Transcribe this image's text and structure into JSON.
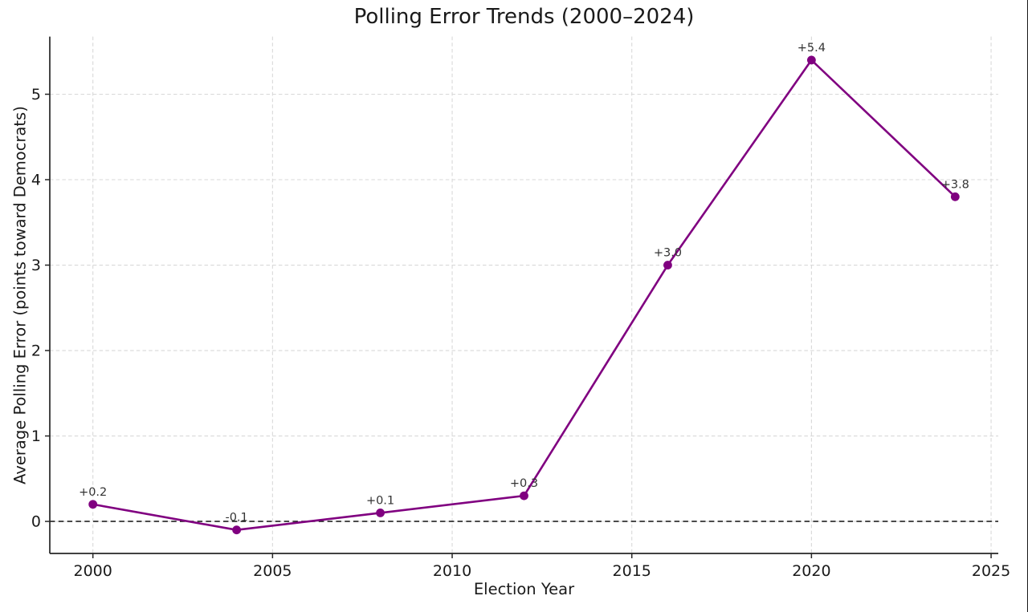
{
  "chart_data": {
    "type": "line",
    "title": "Polling Error Trends (2000–2024)",
    "xlabel": "Election Year",
    "ylabel": "Average Polling Error (points toward Democrats)",
    "x": [
      2000,
      2004,
      2008,
      2012,
      2016,
      2020,
      2024
    ],
    "y": [
      0.2,
      -0.1,
      0.1,
      0.3,
      3.0,
      5.4,
      3.8
    ],
    "point_labels": [
      "+0.2",
      "-0.1",
      "+0.1",
      "+0.3",
      "+3.0",
      "+5.4",
      "+3.8"
    ],
    "xticks": [
      2000,
      2005,
      2010,
      2015,
      2020,
      2025
    ],
    "xtick_labels": [
      "2000",
      "2005",
      "2010",
      "2015",
      "2020",
      "2025"
    ],
    "yticks": [
      0,
      1,
      2,
      3,
      4,
      5
    ],
    "ytick_labels": [
      "0",
      "1",
      "2",
      "3",
      "4",
      "5"
    ],
    "xlim": [
      1998.8,
      2025.2
    ],
    "ylim": [
      -0.375,
      5.675
    ],
    "line_color": "#800080",
    "marker": "circle",
    "grid": true,
    "grid_color": "#d8d8d8",
    "grid_style": "dashed",
    "zero_line": {
      "y": 0,
      "color": "#111111",
      "style": "dashed"
    },
    "legend": null
  }
}
